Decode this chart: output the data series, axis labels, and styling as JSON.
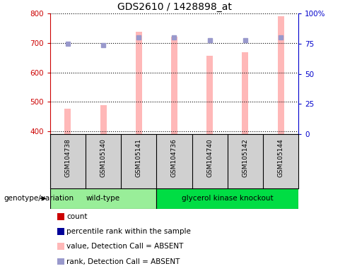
{
  "title": "GDS2610 / 1428898_at",
  "samples": [
    "GSM104738",
    "GSM105140",
    "GSM105141",
    "GSM104736",
    "GSM104740",
    "GSM105142",
    "GSM105144"
  ],
  "groups": {
    "wild-type": [
      0,
      1,
      2
    ],
    "glycerol kinase knockout": [
      3,
      4,
      5,
      6
    ]
  },
  "bar_values": [
    476,
    488,
    737,
    722,
    657,
    669,
    790
  ],
  "rank_values": [
    75,
    74,
    80,
    80,
    78,
    78,
    80
  ],
  "ylim_left": [
    390,
    800
  ],
  "ylim_right": [
    0,
    100
  ],
  "yticks_left": [
    400,
    500,
    600,
    700,
    800
  ],
  "yticks_right": [
    0,
    25,
    50,
    75,
    100
  ],
  "yright_labels": [
    "0",
    "25",
    "50",
    "75",
    "100%"
  ],
  "bar_color": "#FFB8B8",
  "rank_color": "#9999CC",
  "left_axis_color": "#CC0000",
  "right_axis_color": "#0000CC",
  "group_wt_color": "#99EE99",
  "group_gk_color": "#00DD44",
  "legend_items": [
    {
      "label": "count",
      "color": "#CC0000"
    },
    {
      "label": "percentile rank within the sample",
      "color": "#000099"
    },
    {
      "label": "value, Detection Call = ABSENT",
      "color": "#FFB8B8"
    },
    {
      "label": "rank, Detection Call = ABSENT",
      "color": "#9999CC"
    }
  ],
  "xlabel_genotype": "genotype/variation",
  "base_value": 390,
  "bar_width": 0.18
}
